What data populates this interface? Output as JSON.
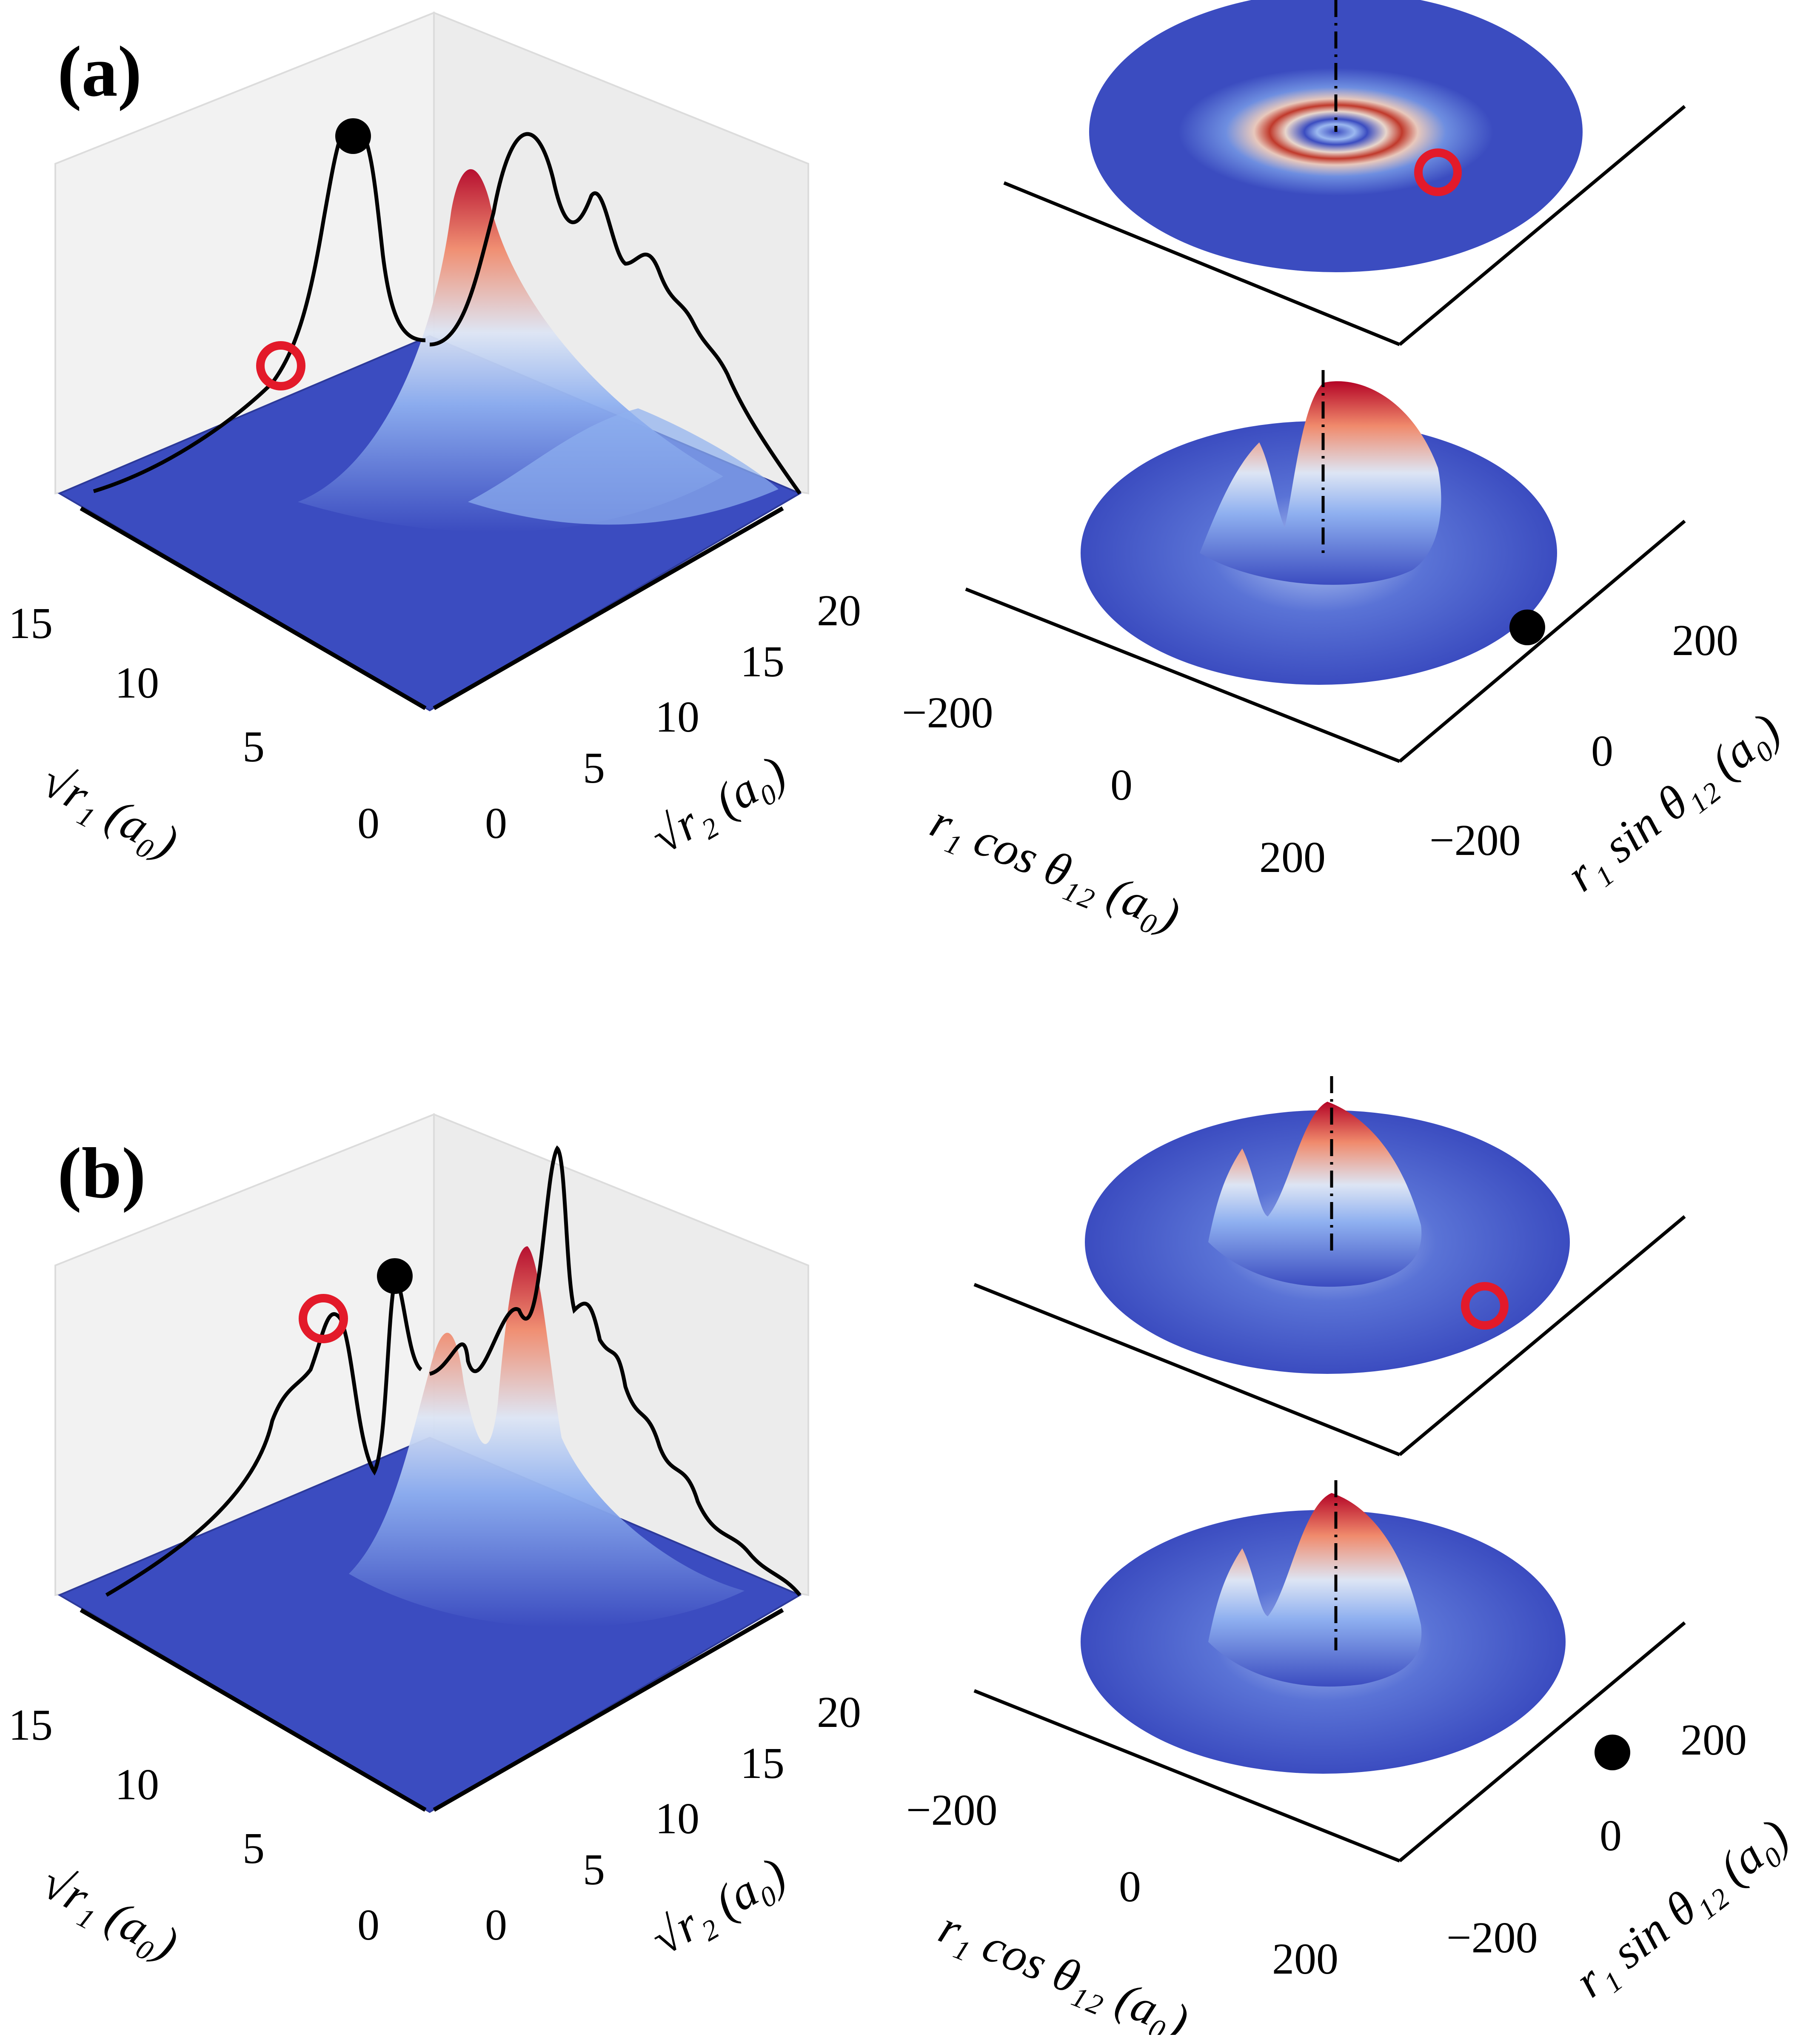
{
  "panels": [
    {
      "label": "(a)",
      "surface_axes": {
        "r1_ticks": [
          "15",
          "10",
          "5",
          "0"
        ],
        "r2_ticks": [
          "0",
          "5",
          "10",
          "15",
          "20"
        ],
        "r1_label": "√r₁ (a₀)",
        "r2_label": "√r₂ (a₀)"
      },
      "disk_axes": {
        "x_ticks": [
          "−200",
          "0",
          "200"
        ],
        "y_ticks": [
          "−200",
          "0",
          "200"
        ],
        "x_label": "r₁ cos θ₁₂ (a₀)",
        "y_label": "r₁ sin θ₁₂ (a₀)"
      }
    },
    {
      "label": "(b)",
      "surface_axes": {
        "r1_ticks": [
          "15",
          "10",
          "5",
          "0"
        ],
        "r2_ticks": [
          "0",
          "5",
          "10",
          "15",
          "20"
        ],
        "r1_label": "√r₁ (a₀)",
        "r2_label": "√r₂ (a₀)"
      },
      "disk_axes": {
        "x_ticks": [
          "−200",
          "0",
          "200"
        ],
        "y_ticks": [
          "−200",
          "0",
          "200"
        ],
        "x_label": "r₁ cos θ₁₂ (a₀)",
        "y_label": "r₁ sin θ₁₂ (a₀)"
      }
    }
  ],
  "colors": {
    "surface_base": "#3b4cc0",
    "surface_mid": "#dde5f4",
    "surface_peak": "#b40426",
    "marker_open": "#e31a2a",
    "marker_filled": "#000000",
    "pane": "#f2f2f2"
  }
}
